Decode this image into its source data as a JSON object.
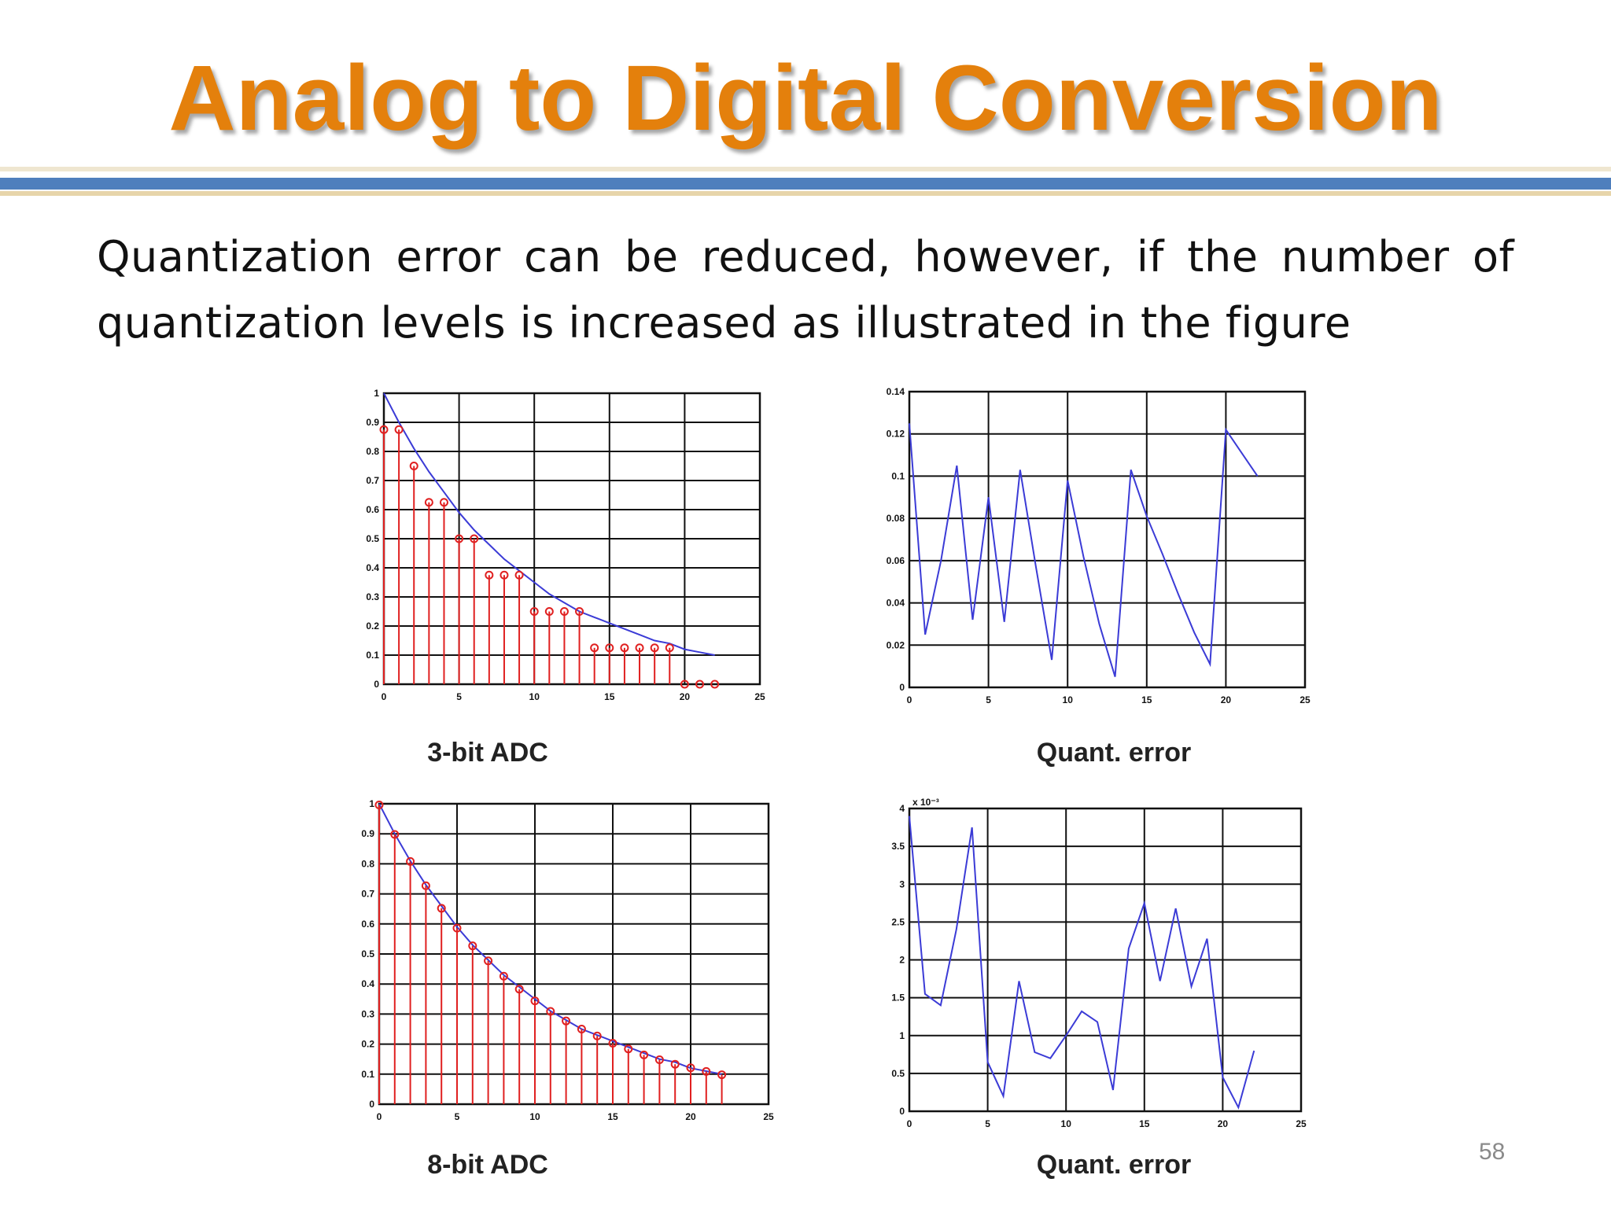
{
  "slide": {
    "title": "Analog to Digital Conversion",
    "body": "Quantization error can be reduced, however, if the number of quantization levels is increased as illustrated in  the figure",
    "page_number": "58",
    "title_color": "#e4800c",
    "rule_color": "#4f7fbd"
  },
  "chart_data": [
    {
      "type": "stem",
      "caption": "3-bit ADC",
      "xlim": [
        0,
        25
      ],
      "ylim": [
        0,
        1
      ],
      "xticks": [
        0,
        5,
        10,
        15,
        20,
        25
      ],
      "xtick_labels": [
        "0",
        "5",
        "10",
        "15",
        "20",
        "25"
      ],
      "yticks": [
        0,
        0.1,
        0.2,
        0.3,
        0.4,
        0.5,
        0.6,
        0.7,
        0.8,
        0.9,
        1
      ],
      "ytick_labels": [
        "0",
        "0.1",
        "0.2",
        "0.3",
        "0.4",
        "0.5",
        "0.6",
        "0.7",
        "0.8",
        "0.9",
        "1"
      ],
      "grid": true,
      "line_color": "#3b3bd6",
      "stem_color": "#e02020",
      "series": [
        {
          "kind": "line",
          "x": [
            0,
            1,
            2,
            3,
            4,
            5,
            6,
            7,
            8,
            9,
            10,
            11,
            12,
            13,
            14,
            15,
            16,
            17,
            18,
            19,
            20,
            21,
            22
          ],
          "values": [
            1.0,
            0.9,
            0.81,
            0.73,
            0.66,
            0.59,
            0.53,
            0.48,
            0.43,
            0.39,
            0.35,
            0.31,
            0.28,
            0.25,
            0.23,
            0.21,
            0.19,
            0.17,
            0.15,
            0.14,
            0.12,
            0.11,
            0.1
          ]
        },
        {
          "kind": "stem",
          "x": [
            0,
            1,
            2,
            3,
            4,
            5,
            6,
            7,
            8,
            9,
            10,
            11,
            12,
            13,
            14,
            15,
            16,
            17,
            18,
            19,
            20,
            21,
            22
          ],
          "values": [
            0.875,
            0.875,
            0.75,
            0.625,
            0.625,
            0.5,
            0.5,
            0.375,
            0.375,
            0.375,
            0.25,
            0.25,
            0.25,
            0.25,
            0.125,
            0.125,
            0.125,
            0.125,
            0.125,
            0.125,
            0,
            0,
            0
          ]
        }
      ]
    },
    {
      "type": "line",
      "caption": "Quant. error",
      "xlim": [
        0,
        25
      ],
      "ylim": [
        0,
        0.14
      ],
      "xticks": [
        0,
        5,
        10,
        15,
        20,
        25
      ],
      "xtick_labels": [
        "0",
        "5",
        "10",
        "15",
        "20",
        "25"
      ],
      "yticks": [
        0,
        0.02,
        0.04,
        0.06,
        0.08,
        0.1,
        0.12,
        0.14
      ],
      "ytick_labels": [
        "0",
        "0.02",
        "0.04",
        "0.06",
        "0.08",
        "0.1",
        "0.12",
        "0.14"
      ],
      "grid": true,
      "line_color": "#3b3bd6",
      "series": [
        {
          "kind": "line",
          "x": [
            0,
            1,
            2,
            3,
            4,
            5,
            6,
            7,
            8,
            9,
            10,
            11,
            12,
            13,
            14,
            15,
            16,
            17,
            18,
            19,
            20,
            21,
            22
          ],
          "values": [
            0.125,
            0.025,
            0.06,
            0.105,
            0.032,
            0.09,
            0.031,
            0.103,
            0.057,
            0.013,
            0.098,
            0.062,
            0.03,
            0.005,
            0.103,
            0.081,
            0.063,
            0.044,
            0.026,
            0.011,
            0.122,
            0.111,
            0.1
          ]
        }
      ]
    },
    {
      "type": "stem",
      "caption": "8-bit ADC",
      "xlim": [
        0,
        25
      ],
      "ylim": [
        0,
        1
      ],
      "xticks": [
        0,
        5,
        10,
        15,
        20,
        25
      ],
      "xtick_labels": [
        "0",
        "5",
        "10",
        "15",
        "20",
        "25"
      ],
      "yticks": [
        0,
        0.1,
        0.2,
        0.3,
        0.4,
        0.5,
        0.6,
        0.7,
        0.8,
        0.9,
        1
      ],
      "ytick_labels": [
        "0",
        "0.1",
        "0.2",
        "0.3",
        "0.4",
        "0.5",
        "0.6",
        "0.7",
        "0.8",
        "0.9",
        "1"
      ],
      "grid": true,
      "line_color": "#3b3bd6",
      "stem_color": "#e02020",
      "series": [
        {
          "kind": "line",
          "x": [
            0,
            1,
            2,
            3,
            4,
            5,
            6,
            7,
            8,
            9,
            10,
            11,
            12,
            13,
            14,
            15,
            16,
            17,
            18,
            19,
            20,
            21,
            22
          ],
          "values": [
            1.0,
            0.9,
            0.81,
            0.73,
            0.66,
            0.59,
            0.53,
            0.48,
            0.43,
            0.39,
            0.35,
            0.31,
            0.28,
            0.25,
            0.23,
            0.21,
            0.19,
            0.17,
            0.15,
            0.14,
            0.12,
            0.11,
            0.1
          ]
        },
        {
          "kind": "stem",
          "x": [
            0,
            1,
            2,
            3,
            4,
            5,
            6,
            7,
            8,
            9,
            10,
            11,
            12,
            13,
            14,
            15,
            16,
            17,
            18,
            19,
            20,
            21,
            22
          ],
          "values": [
            0.996,
            0.898,
            0.808,
            0.727,
            0.652,
            0.586,
            0.527,
            0.477,
            0.426,
            0.383,
            0.344,
            0.309,
            0.277,
            0.25,
            0.227,
            0.203,
            0.184,
            0.164,
            0.148,
            0.133,
            0.121,
            0.109,
            0.098
          ]
        }
      ]
    },
    {
      "type": "line",
      "caption": "Quant. error",
      "multiplier": "x 10⁻³",
      "xlim": [
        0,
        25
      ],
      "ylim": [
        0,
        4
      ],
      "xticks": [
        0,
        5,
        10,
        15,
        20,
        25
      ],
      "xtick_labels": [
        "0",
        "5",
        "10",
        "15",
        "20",
        "25"
      ],
      "yticks": [
        0,
        0.5,
        1,
        1.5,
        2,
        2.5,
        3,
        3.5,
        4
      ],
      "ytick_labels": [
        "0",
        "0.5",
        "1",
        "1.5",
        "2",
        "2.5",
        "3",
        "3.5",
        "4"
      ],
      "grid": true,
      "line_color": "#3b3bd6",
      "series": [
        {
          "kind": "line",
          "x": [
            0,
            1,
            2,
            3,
            4,
            5,
            6,
            7,
            8,
            9,
            10,
            11,
            12,
            13,
            14,
            15,
            16,
            17,
            18,
            19,
            20,
            21,
            22
          ],
          "values": [
            3.9,
            1.55,
            1.4,
            2.4,
            3.75,
            0.65,
            0.2,
            1.72,
            0.78,
            0.7,
            1.0,
            1.32,
            1.18,
            0.28,
            2.15,
            2.75,
            1.72,
            2.68,
            1.65,
            2.28,
            0.45,
            0.05,
            0.8
          ]
        }
      ]
    }
  ]
}
